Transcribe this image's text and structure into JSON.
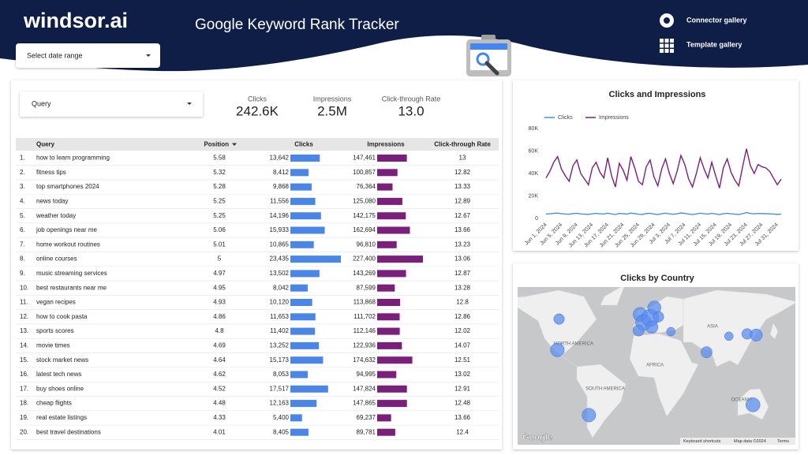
{
  "header": {
    "logo": "windsor.ai",
    "title": "Google Keyword Rank Tracker",
    "links": [
      "Connector gallery",
      "Template gallery"
    ]
  },
  "date_range": "Select date range",
  "query_filter": "Query",
  "scorecards": [
    {
      "label": "Clicks",
      "value": "242.6K"
    },
    {
      "label": "Impressions",
      "value": "2.5M"
    },
    {
      "label": "Click-through Rate",
      "value": "13.0"
    }
  ],
  "table": {
    "columns": [
      "Query",
      "Position",
      "Clicks",
      "Impressions",
      "Click-through Rate"
    ],
    "rows": [
      {
        "rank": "1.",
        "query": "how to learn programming",
        "position": 5.58,
        "clicks": {
          "value": 13642,
          "label": "13,642"
        },
        "impressions": {
          "value": 147461,
          "label": "147,461"
        },
        "ctr": 13
      },
      {
        "rank": "2.",
        "query": "fitness tips",
        "position": 5.32,
        "clicks": {
          "value": 8412,
          "label": "8,412"
        },
        "impressions": {
          "value": 100857,
          "label": "100,857"
        },
        "ctr": 12.82
      },
      {
        "rank": "3.",
        "query": "top smartphones 2024",
        "position": 5.28,
        "clicks": {
          "value": 9868,
          "label": "9,868"
        },
        "impressions": {
          "value": 76364,
          "label": "76,364"
        },
        "ctr": 13.33
      },
      {
        "rank": "4.",
        "query": "news today",
        "position": 5.25,
        "clicks": {
          "value": 11556,
          "label": "11,556"
        },
        "impressions": {
          "value": 125080,
          "label": "125,080"
        },
        "ctr": 12.89
      },
      {
        "rank": "5.",
        "query": "weather today",
        "position": 5.25,
        "clicks": {
          "value": 14196,
          "label": "14,196"
        },
        "impressions": {
          "value": 142175,
          "label": "142,175"
        },
        "ctr": 12.67
      },
      {
        "rank": "6.",
        "query": "job openings near me",
        "position": 5.06,
        "clicks": {
          "value": 15933,
          "label": "15,933"
        },
        "impressions": {
          "value": 162694,
          "label": "162,694"
        },
        "ctr": 13.66
      },
      {
        "rank": "7.",
        "query": "home workout routines",
        "position": 5.01,
        "clicks": {
          "value": 10865,
          "label": "10,865"
        },
        "impressions": {
          "value": 96810,
          "label": "96,810"
        },
        "ctr": 13.23
      },
      {
        "rank": "8.",
        "query": "online courses",
        "position": 5,
        "clicks": {
          "value": 23435,
          "label": "23,435"
        },
        "impressions": {
          "value": 227400,
          "label": "227,400"
        },
        "ctr": 13.06
      },
      {
        "rank": "9.",
        "query": "music streaming services",
        "position": 4.97,
        "clicks": {
          "value": 13502,
          "label": "13,502"
        },
        "impressions": {
          "value": 143269,
          "label": "143,269"
        },
        "ctr": 12.87
      },
      {
        "rank": "10.",
        "query": "best restaurants near me",
        "position": 4.95,
        "clicks": {
          "value": 8042,
          "label": "8,042"
        },
        "impressions": {
          "value": 87599,
          "label": "87,599"
        },
        "ctr": 13.28
      },
      {
        "rank": "11.",
        "query": "vegan recipes",
        "position": 4.93,
        "clicks": {
          "value": 10120,
          "label": "10,120"
        },
        "impressions": {
          "value": 113868,
          "label": "113,868"
        },
        "ctr": 12.8
      },
      {
        "rank": "12.",
        "query": "how to cook pasta",
        "position": 4.86,
        "clicks": {
          "value": 11653,
          "label": "11,653"
        },
        "impressions": {
          "value": 111702,
          "label": "111,702"
        },
        "ctr": 12.86
      },
      {
        "rank": "13.",
        "query": "sports scores",
        "position": 4.8,
        "clicks": {
          "value": 11402,
          "label": "11,402"
        },
        "impressions": {
          "value": 112146,
          "label": "112,146"
        },
        "ctr": 12.02
      },
      {
        "rank": "14.",
        "query": "movie times",
        "position": 4.69,
        "clicks": {
          "value": 13252,
          "label": "13,252"
        },
        "impressions": {
          "value": 122936,
          "label": "122,936"
        },
        "ctr": 14.07
      },
      {
        "rank": "15.",
        "query": "stock market news",
        "position": 4.64,
        "clicks": {
          "value": 15173,
          "label": "15,173"
        },
        "impressions": {
          "value": 174632,
          "label": "174,632"
        },
        "ctr": 12.51
      },
      {
        "rank": "16.",
        "query": "latest tech news",
        "position": 4.62,
        "clicks": {
          "value": 8053,
          "label": "8,053"
        },
        "impressions": {
          "value": 94995,
          "label": "94,995"
        },
        "ctr": 13.02
      },
      {
        "rank": "17.",
        "query": "buy shoes online",
        "position": 4.52,
        "clicks": {
          "value": 17517,
          "label": "17,517"
        },
        "impressions": {
          "value": 147824,
          "label": "147,824"
        },
        "ctr": 12.91
      },
      {
        "rank": "18.",
        "query": "cheap flights",
        "position": 4.48,
        "clicks": {
          "value": 12163,
          "label": "12,163"
        },
        "impressions": {
          "value": 147865,
          "label": "147,865"
        },
        "ctr": 12.48
      },
      {
        "rank": "19.",
        "query": "real estate listings",
        "position": 4.33,
        "clicks": {
          "value": 5400,
          "label": "5,400"
        },
        "impressions": {
          "value": 69237,
          "label": "69,237"
        },
        "ctr": 13.66
      },
      {
        "rank": "20.",
        "query": "best travel destinations",
        "position": 4.01,
        "clicks": {
          "value": 8405,
          "label": "8,405"
        },
        "impressions": {
          "value": 89781,
          "label": "89,781"
        },
        "ctr": 12.4
      }
    ],
    "clicks_color": "#4a86e8",
    "impressions_color": "#7b1f7c"
  },
  "chart_data": [
    {
      "type": "line",
      "title": "Clicks and Impressions",
      "x": [
        "Jun 1, 2024",
        "Jun 2, 2024",
        "Jun 3, 2024",
        "Jun 4, 2024",
        "Jun 5, 2024",
        "Jun 6, 2024",
        "Jun 7, 2024",
        "Jun 8, 2024",
        "Jun 9, 2024",
        "Jun 10, 2024",
        "Jun 11, 2024",
        "Jun 12, 2024",
        "Jun 13, 2024",
        "Jun 14, 2024",
        "Jun 15, 2024",
        "Jun 16, 2024",
        "Jun 17, 2024",
        "Jun 18, 2024",
        "Jun 19, 2024",
        "Jun 20, 2024",
        "Jun 21, 2024",
        "Jun 22, 2024",
        "Jun 23, 2024",
        "Jun 24, 2024",
        "Jun 25, 2024",
        "Jun 26, 2024",
        "Jun 27, 2024",
        "Jun 28, 2024",
        "Jun 29, 2024",
        "Jun 30, 2024",
        "Jul 1, 2024",
        "Jul 2, 2024",
        "Jul 3, 2024",
        "Jul 4, 2024",
        "Jul 5, 2024",
        "Jul 6, 2024",
        "Jul 7, 2024",
        "Jul 8, 2024",
        "Jul 9, 2024",
        "Jul 10, 2024",
        "Jul 11, 2024",
        "Jul 12, 2024",
        "Jul 13, 2024",
        "Jul 14, 2024",
        "Jul 15, 2024",
        "Jul 16, 2024",
        "Jul 17, 2024",
        "Jul 18, 2024",
        "Jul 19, 2024",
        "Jul 20, 2024",
        "Jul 21, 2024",
        "Jul 22, 2024",
        "Jul 23, 2024",
        "Jul 24, 2024",
        "Jul 25, 2024",
        "Jul 26, 2024",
        "Jul 27, 2024",
        "Jul 28, 2024",
        "Jul 29, 2024",
        "Jul 30, 2024",
        "Jul 31, 2024",
        "Aug 1, 2024"
      ],
      "xticks": [
        "Jun 1, 2024",
        "Jun 5, 2024",
        "Jun 9, 2024",
        "Jun 13, 2024",
        "Jun 17, 2024",
        "Jun 21, 2024",
        "Jun 25, 2024",
        "Jun 29, 2024",
        "Jul 3, 2024",
        "Jul 7, 2024",
        "Jul 11, 2024",
        "Jul 15, 2024",
        "Jul 19, 2024",
        "Jul 23, 2024",
        "Jul 27, 2024",
        "Jul 31, 2024"
      ],
      "series": [
        {
          "name": "Clicks",
          "color": "#4a90d9",
          "values": [
            3900,
            4100,
            4500,
            4800,
            4200,
            3900,
            3700,
            4300,
            4600,
            4000,
            3800,
            3600,
            4200,
            4500,
            4100,
            3900,
            4700,
            4000,
            3500,
            4400,
            4200,
            3800,
            4800,
            4300,
            3700,
            3600,
            4300,
            4600,
            3900,
            3500,
            4200,
            4700,
            4100,
            3700,
            4100,
            4900,
            4400,
            3900,
            3500,
            4000,
            4700,
            4200,
            3900,
            4500,
            4000,
            3400,
            4200,
            4600,
            4100,
            3800,
            3500,
            4300,
            5200,
            4400,
            4100,
            4400,
            4300,
            4200,
            4100,
            3900,
            3600,
            3800
          ]
        },
        {
          "name": "Impressions",
          "color": "#7b1f7c",
          "values": [
            36000,
            42000,
            50000,
            55000,
            44000,
            38000,
            33000,
            47000,
            52000,
            40000,
            35000,
            30000,
            45000,
            50000,
            41000,
            36000,
            54000,
            38000,
            28000,
            49000,
            43000,
            34000,
            55000,
            45000,
            33000,
            30000,
            46000,
            52000,
            37000,
            29000,
            44000,
            53000,
            40000,
            31000,
            42000,
            56000,
            48000,
            35000,
            28000,
            40000,
            54000,
            44000,
            36000,
            50000,
            38000,
            27000,
            45000,
            53000,
            41000,
            34000,
            29000,
            46000,
            62000,
            47000,
            40000,
            48000,
            46000,
            45000,
            42000,
            36000,
            30000,
            35000
          ]
        }
      ],
      "ylim": [
        0,
        80000
      ],
      "yticks": [
        0,
        {
          "value": 20000,
          "label": "20K"
        },
        {
          "value": 40000,
          "label": "40K"
        },
        {
          "value": 60000,
          "label": "60K"
        },
        {
          "value": 80000,
          "label": "80K"
        }
      ],
      "legend": "top-left",
      "grid": false
    },
    {
      "type": "map",
      "title": "Clicks by Country",
      "color": "#5b8ef0",
      "points": [
        {
          "lon": -100,
          "lat": 50,
          "value": 9000
        },
        {
          "lon": -102,
          "lat": 23,
          "value": 15000
        },
        {
          "lon": -64,
          "lat": -34,
          "value": 15000
        },
        {
          "lon": -2,
          "lat": 54,
          "value": 16000
        },
        {
          "lon": 2,
          "lat": 47,
          "value": 20000
        },
        {
          "lon": 10,
          "lat": 51,
          "value": 24000
        },
        {
          "lon": -4,
          "lat": 40,
          "value": 10000
        },
        {
          "lon": 12,
          "lat": 43,
          "value": 12000
        },
        {
          "lon": 15,
          "lat": 60,
          "value": 14000
        },
        {
          "lon": 20,
          "lat": 52,
          "value": 9000
        },
        {
          "lon": 35,
          "lat": 39,
          "value": 6000
        },
        {
          "lon": 78,
          "lat": 21,
          "value": 10000
        },
        {
          "lon": 105,
          "lat": 35,
          "value": 6000
        },
        {
          "lon": 127,
          "lat": 37,
          "value": 9000
        },
        {
          "lon": 138,
          "lat": 36,
          "value": 12000
        },
        {
          "lon": 134,
          "lat": -25,
          "value": 16000
        }
      ],
      "labels": [
        "NORTH AMERICA",
        "SOUTH AMERICA",
        "AFRICA",
        "ASIA",
        "OCEANIA"
      ],
      "provider": "Google",
      "attribution": [
        "Keyboard shortcuts",
        "Map data ©2024",
        "Terms"
      ]
    }
  ]
}
